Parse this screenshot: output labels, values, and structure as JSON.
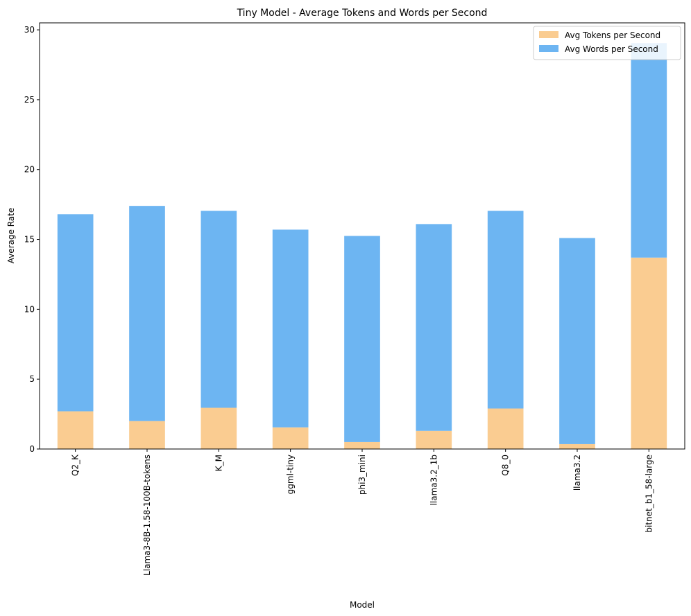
{
  "chart_data": {
    "type": "bar",
    "stacked": true,
    "title": "Tiny Model - Average Tokens and Words per Second",
    "xlabel": "Model",
    "ylabel": "Average Rate",
    "ylim": [
      0,
      30.5
    ],
    "yticks": [
      0,
      5,
      10,
      15,
      20,
      25,
      30
    ],
    "grid": false,
    "legend_position": "top-right",
    "categories": [
      "Q2_K",
      "Llama3-8B-1.58-100B-tokens",
      "K_M",
      "ggml-tiny",
      "phi3_mini",
      "llama3.2_1b",
      "Q8_0",
      "llama3.2",
      "bitnet_b1_58-large"
    ],
    "series": [
      {
        "name": "Avg Tokens per Second",
        "color": "#facc91",
        "values": [
          2.7,
          2.0,
          2.95,
          1.55,
          0.5,
          1.3,
          2.9,
          0.35,
          13.7
        ]
      },
      {
        "name": "Avg Words per Second",
        "color": "#6db5f2",
        "values": [
          14.1,
          15.4,
          14.1,
          14.15,
          14.75,
          14.8,
          14.15,
          14.75,
          15.35
        ]
      }
    ]
  }
}
